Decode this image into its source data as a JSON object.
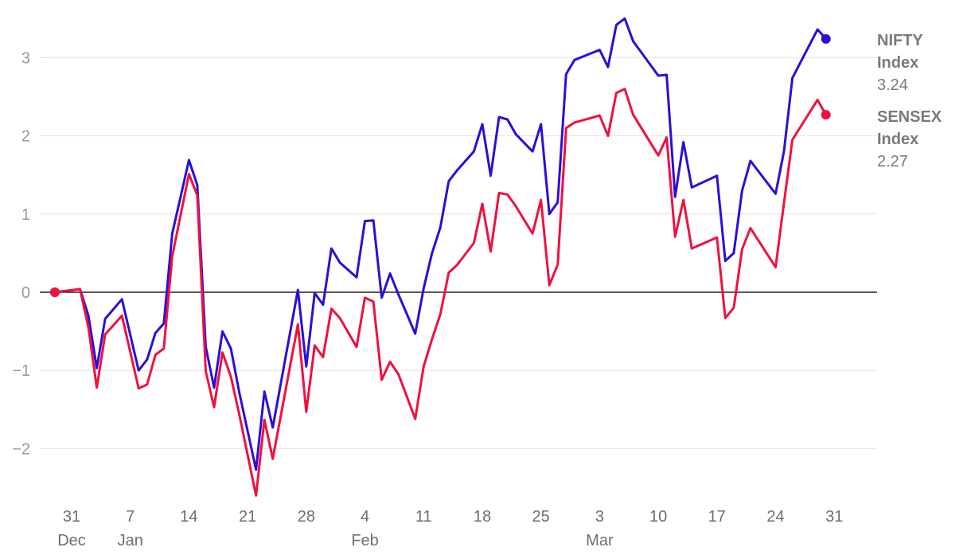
{
  "chart_data": {
    "type": "line",
    "title": "",
    "xlabel": "",
    "ylabel": "",
    "ylim": [
      -2.6,
      3.5
    ],
    "grid": true,
    "legend": "end-of-line labels, right",
    "yticks": [
      {
        "value": 3,
        "label": "3"
      },
      {
        "value": 2,
        "label": "2"
      },
      {
        "value": 1,
        "label": "1"
      },
      {
        "value": 0,
        "label": "0"
      },
      {
        "value": -1,
        "label": "−1"
      },
      {
        "value": -2,
        "label": "−2"
      }
    ],
    "xticks": [
      {
        "day": 0,
        "label": "31"
      },
      {
        "day": 7,
        "label": "7"
      },
      {
        "day": 14,
        "label": "14"
      },
      {
        "day": 21,
        "label": "21"
      },
      {
        "day": 28,
        "label": "28"
      },
      {
        "day": 35,
        "label": "4"
      },
      {
        "day": 42,
        "label": "11"
      },
      {
        "day": 49,
        "label": "18"
      },
      {
        "day": 56,
        "label": "25"
      },
      {
        "day": 63,
        "label": "3"
      },
      {
        "day": 70,
        "label": "10"
      },
      {
        "day": 77,
        "label": "17"
      },
      {
        "day": 84,
        "label": "24"
      },
      {
        "day": 91,
        "label": "31"
      }
    ],
    "months": [
      {
        "day": 0,
        "label": "Dec"
      },
      {
        "day": 7,
        "label": "Jan"
      },
      {
        "day": 35,
        "label": "Feb"
      },
      {
        "day": 63,
        "label": "Mar"
      }
    ],
    "series": [
      {
        "name": "NIFTY Index",
        "name_lines": [
          "NIFTY",
          "Index"
        ],
        "value_label": "3.24",
        "color": "#2a0fd6",
        "x": [
          -2,
          1,
          2,
          3,
          4,
          6,
          8,
          9,
          10,
          11,
          12,
          14,
          15,
          16,
          17,
          18,
          19,
          20,
          22,
          23,
          24,
          27,
          28,
          29,
          30,
          31,
          32,
          34,
          35,
          36,
          37,
          38,
          39,
          41,
          42,
          43,
          44,
          45,
          46,
          48,
          49,
          50,
          51,
          52,
          53,
          55,
          56,
          57,
          58,
          59,
          60,
          63,
          64,
          65,
          66,
          67,
          70,
          71,
          72,
          73,
          74,
          77,
          78,
          79,
          80,
          81,
          84,
          85,
          86,
          89,
          90
        ],
        "values": [
          0,
          0.04,
          -0.3,
          -0.97,
          -0.34,
          -0.09,
          -1.0,
          -0.86,
          -0.52,
          -0.4,
          0.75,
          1.69,
          1.37,
          -0.7,
          -1.22,
          -0.5,
          -0.72,
          -1.28,
          -2.27,
          -1.27,
          -1.73,
          0.03,
          -0.95,
          -0.01,
          -0.16,
          0.56,
          0.38,
          0.19,
          0.91,
          0.92,
          -0.07,
          0.24,
          -0.03,
          -0.53,
          0.05,
          0.5,
          0.83,
          1.42,
          1.56,
          1.8,
          2.15,
          1.49,
          2.24,
          2.21,
          2.02,
          1.8,
          2.15,
          1.0,
          1.15,
          2.79,
          2.97,
          3.1,
          2.88,
          3.42,
          3.5,
          3.21,
          2.77,
          2.78,
          1.22,
          1.92,
          1.34,
          1.49,
          0.4,
          0.5,
          1.3,
          1.68,
          1.26,
          1.8,
          2.74,
          3.36,
          3.24
        ]
      },
      {
        "name": "SENSEX Index",
        "name_lines": [
          "SENSEX",
          "Index"
        ],
        "value_label": "2.27",
        "color": "#f0103f",
        "x": [
          -2,
          1,
          2,
          3,
          4,
          6,
          8,
          9,
          10,
          11,
          12,
          14,
          15,
          16,
          17,
          18,
          19,
          20,
          22,
          23,
          24,
          27,
          28,
          29,
          30,
          31,
          32,
          34,
          35,
          36,
          37,
          38,
          39,
          41,
          42,
          43,
          44,
          45,
          46,
          48,
          49,
          50,
          51,
          52,
          53,
          55,
          56,
          57,
          58,
          59,
          60,
          63,
          64,
          65,
          66,
          67,
          70,
          71,
          72,
          73,
          74,
          77,
          78,
          79,
          80,
          81,
          84,
          85,
          86,
          89,
          90
        ],
        "values": [
          0,
          0.04,
          -0.45,
          -1.22,
          -0.54,
          -0.3,
          -1.23,
          -1.18,
          -0.8,
          -0.72,
          0.46,
          1.51,
          1.24,
          -1.01,
          -1.47,
          -0.77,
          -1.08,
          -1.56,
          -2.6,
          -1.63,
          -2.13,
          -0.41,
          -1.53,
          -0.68,
          -0.83,
          -0.21,
          -0.33,
          -0.7,
          -0.07,
          -0.12,
          -1.12,
          -0.89,
          -1.05,
          -1.62,
          -0.95,
          -0.6,
          -0.28,
          0.25,
          0.35,
          0.63,
          1.13,
          0.52,
          1.27,
          1.25,
          1.1,
          0.75,
          1.18,
          0.09,
          0.35,
          2.1,
          2.17,
          2.26,
          2.0,
          2.55,
          2.6,
          2.27,
          1.75,
          1.98,
          0.71,
          1.18,
          0.56,
          0.7,
          -0.33,
          -0.2,
          0.55,
          0.82,
          0.32,
          1.14,
          1.95,
          2.46,
          2.27
        ]
      }
    ]
  }
}
